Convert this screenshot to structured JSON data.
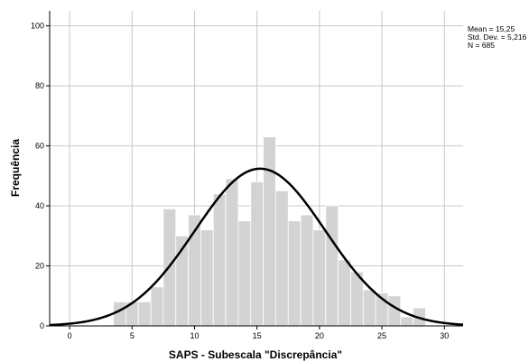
{
  "chart_data": {
    "type": "bar",
    "xlabel": "SAPS - Subescala \"Discrepância\"",
    "ylabel": "Frequência",
    "xlim": [
      -1.6,
      31.5
    ],
    "ylim": [
      0,
      105
    ],
    "x_ticks": [
      0,
      5,
      10,
      15,
      20,
      25,
      30
    ],
    "y_ticks": [
      0,
      20,
      40,
      60,
      80,
      100
    ],
    "grid": true,
    "bin_width": 1,
    "bins": [
      {
        "x": 4,
        "value": 8
      },
      {
        "x": 5,
        "value": 8
      },
      {
        "x": 6,
        "value": 8
      },
      {
        "x": 7,
        "value": 13
      },
      {
        "x": 8,
        "value": 39
      },
      {
        "x": 9,
        "value": 30
      },
      {
        "x": 10,
        "value": 37
      },
      {
        "x": 11,
        "value": 32
      },
      {
        "x": 12,
        "value": 44
      },
      {
        "x": 13,
        "value": 49
      },
      {
        "x": 14,
        "value": 35
      },
      {
        "x": 15,
        "value": 48
      },
      {
        "x": 16,
        "value": 63
      },
      {
        "x": 17,
        "value": 45
      },
      {
        "x": 18,
        "value": 35
      },
      {
        "x": 19,
        "value": 37
      },
      {
        "x": 20,
        "value": 32
      },
      {
        "x": 21,
        "value": 40
      },
      {
        "x": 22,
        "value": 22
      },
      {
        "x": 23,
        "value": 18
      },
      {
        "x": 24,
        "value": 12
      },
      {
        "x": 25,
        "value": 11
      },
      {
        "x": 26,
        "value": 10
      },
      {
        "x": 27,
        "value": 3
      },
      {
        "x": 28,
        "value": 6
      }
    ],
    "normal_curve": {
      "mean": 15.25,
      "sd": 5.216,
      "n": 685,
      "color": "#000000"
    },
    "bar_color": "#d3d3d3",
    "bar_edge_color": "#ffffff",
    "stats": {
      "mean": "Mean = 15,25",
      "sd": "Std. Dev. = 5,216",
      "n": "N = 685"
    }
  }
}
